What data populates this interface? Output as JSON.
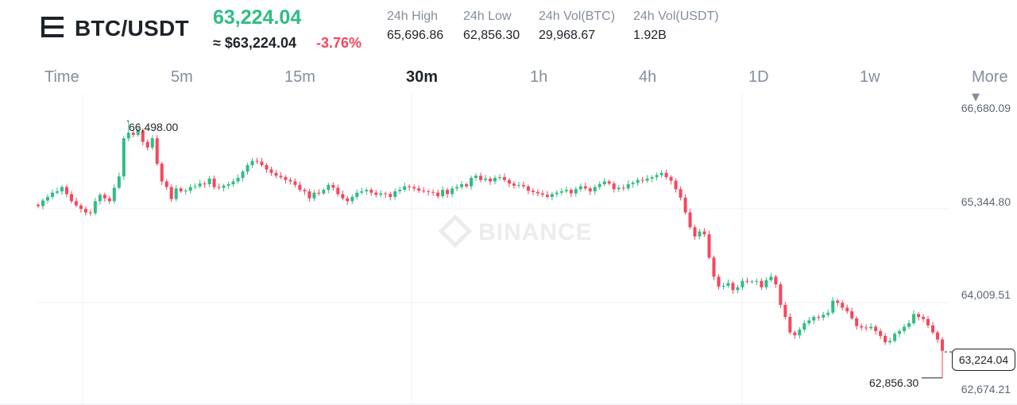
{
  "header": {
    "pair": "BTC/USDT",
    "last_price": "63,224.04",
    "approx_price": "≈ $63,224.04",
    "change_pct": "-3.76%",
    "stats": [
      {
        "label": "24h High",
        "value": "65,696.86"
      },
      {
        "label": "24h Low",
        "value": "62,856.30"
      },
      {
        "label": "24h Vol(BTC)",
        "value": "29,968.67"
      },
      {
        "label": "24h Vol(USDT)",
        "value": "1.92B"
      }
    ]
  },
  "tabs": [
    {
      "label": "Time",
      "active": false
    },
    {
      "label": "5m",
      "active": false
    },
    {
      "label": "15m",
      "active": false
    },
    {
      "label": "30m",
      "active": true
    },
    {
      "label": "1h",
      "active": false
    },
    {
      "label": "4h",
      "active": false
    },
    {
      "label": "1D",
      "active": false
    },
    {
      "label": "1w",
      "active": false
    },
    {
      "label": "More ▾",
      "active": false
    }
  ],
  "chart": {
    "watermark": "BINANCE",
    "y_axis_ticks": [
      "66,680.09",
      "65,344.80",
      "64,009.51",
      "62,674.21"
    ],
    "current_price_tag": "63,224.04",
    "high_label": "66,498.00",
    "low_label": "62,856.30",
    "colors": {
      "up": "#2ebd85",
      "down": "#f6465d",
      "grid": "#f0f1f2"
    }
  },
  "chart_data": {
    "type": "candlestick",
    "y_range": [
      62674.21,
      66680.09
    ],
    "closes": [
      65290,
      65370,
      65420,
      65480,
      65500,
      65560,
      65460,
      65360,
      65300,
      65250,
      65200,
      65190,
      65360,
      65450,
      65400,
      65360,
      65550,
      65710,
      66250,
      66330,
      66300,
      66360,
      66200,
      66120,
      66250,
      65890,
      65640,
      65560,
      65390,
      65540,
      65500,
      65510,
      65560,
      65570,
      65610,
      65600,
      65680,
      65560,
      65550,
      65580,
      65600,
      65640,
      65690,
      65780,
      65870,
      65930,
      65920,
      65870,
      65810,
      65760,
      65720,
      65700,
      65660,
      65640,
      65590,
      65520,
      65500,
      65400,
      65480,
      65470,
      65520,
      65590,
      65550,
      65460,
      65400,
      65360,
      65420,
      65480,
      65500,
      65520,
      65480,
      65450,
      65470,
      65460,
      65420,
      65500,
      65520,
      65570,
      65560,
      65540,
      65510,
      65500,
      65490,
      65480,
      65430,
      65520,
      65460,
      65540,
      65560,
      65600,
      65570,
      65690,
      65720,
      65660,
      65680,
      65640,
      65690,
      65700,
      65660,
      65610,
      65580,
      65590,
      65570,
      65510,
      65490,
      65470,
      65450,
      65420,
      65460,
      65480,
      65500,
      65520,
      65470,
      65530,
      65570,
      65540,
      65500,
      65560,
      65600,
      65640,
      65610,
      65530,
      65550,
      65540,
      65600,
      65620,
      65660,
      65650,
      65680,
      65700,
      65730,
      65760,
      65700,
      65650,
      65530,
      65410,
      65200,
      64990,
      64860,
      64930,
      64890,
      64560,
      64290,
      64150,
      64160,
      64200,
      64100,
      64140,
      64230,
      64220,
      64220,
      64230,
      64140,
      64240,
      64290,
      64180,
      63890,
      63720,
      63500,
      63460,
      63540,
      63630,
      63670,
      63720,
      63710,
      63750,
      63780,
      63950,
      63920,
      63850,
      63800,
      63700,
      63590,
      63570,
      63560,
      63580,
      63520,
      63450,
      63360,
      63380,
      63480,
      63520,
      63580,
      63630,
      63760,
      63720,
      63690,
      63600,
      63500,
      63400,
      63240
    ],
    "high": 66498.0,
    "low": 62856.3,
    "current": 63224.04
  }
}
